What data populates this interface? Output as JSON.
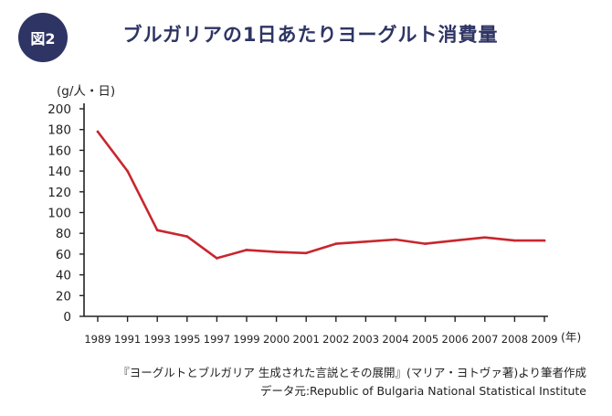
{
  "badge": "図2",
  "title": "ブルガリアの1日あたりヨーグルト消費量",
  "source_line1": "『ヨーグルトとブルガリア 生成された言説とその展開』(マリア・ヨトヴァ著)より筆者作成",
  "source_line2": "データ元:Republic of Bulgaria National Statistical Institute",
  "colors": {
    "line": "#c8262e",
    "title": "#2e3564",
    "axis": "#222222"
  },
  "chart_data": {
    "type": "line",
    "title": "ブルガリアの1日あたりヨーグルト消費量",
    "ylabel": "(g/人・日)",
    "xlabel": "(年)",
    "ylim": [
      0,
      200
    ],
    "yticks": [
      0,
      20,
      40,
      60,
      80,
      100,
      120,
      140,
      160,
      180,
      200
    ],
    "categories": [
      "1989",
      "1991",
      "1993",
      "1995",
      "1997",
      "1999",
      "2000",
      "2001",
      "2002",
      "2003",
      "2004",
      "2005",
      "2006",
      "2007",
      "2008",
      "2009"
    ],
    "series": [
      {
        "values": [
          178,
          140,
          83,
          77,
          56,
          64,
          62,
          61,
          70,
          72,
          74,
          70,
          73,
          76,
          73,
          73
        ]
      }
    ],
    "grid": false,
    "legend": "none"
  }
}
